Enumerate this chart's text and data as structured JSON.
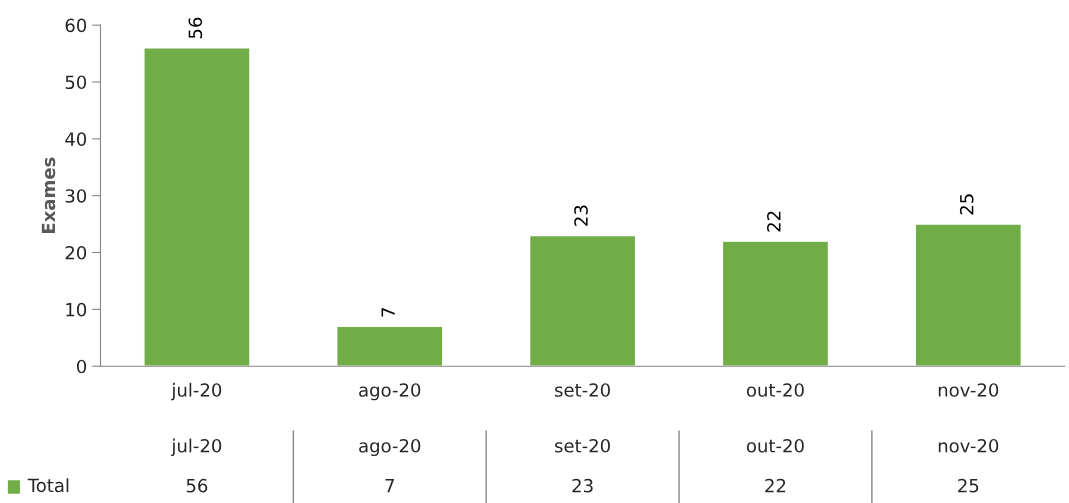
{
  "chart_data": {
    "type": "bar",
    "ylabel": "Exames",
    "categories": [
      "jul-20",
      "ago-20",
      "set-20",
      "out-20",
      "nov-20"
    ],
    "series": [
      {
        "name": "Total",
        "color": "#70ad47",
        "values": [
          56,
          7,
          23,
          22,
          25
        ],
        "value_labels": [
          "56",
          "7",
          "23",
          "22",
          "25"
        ]
      }
    ],
    "ylim": [
      0,
      60
    ],
    "yticks": [
      0,
      10,
      20,
      30,
      40,
      50,
      60
    ],
    "grid": false,
    "annotations": [
      "56",
      "7",
      "23",
      "22",
      "25"
    ],
    "legend": "bottom left",
    "data_labels": true
  }
}
